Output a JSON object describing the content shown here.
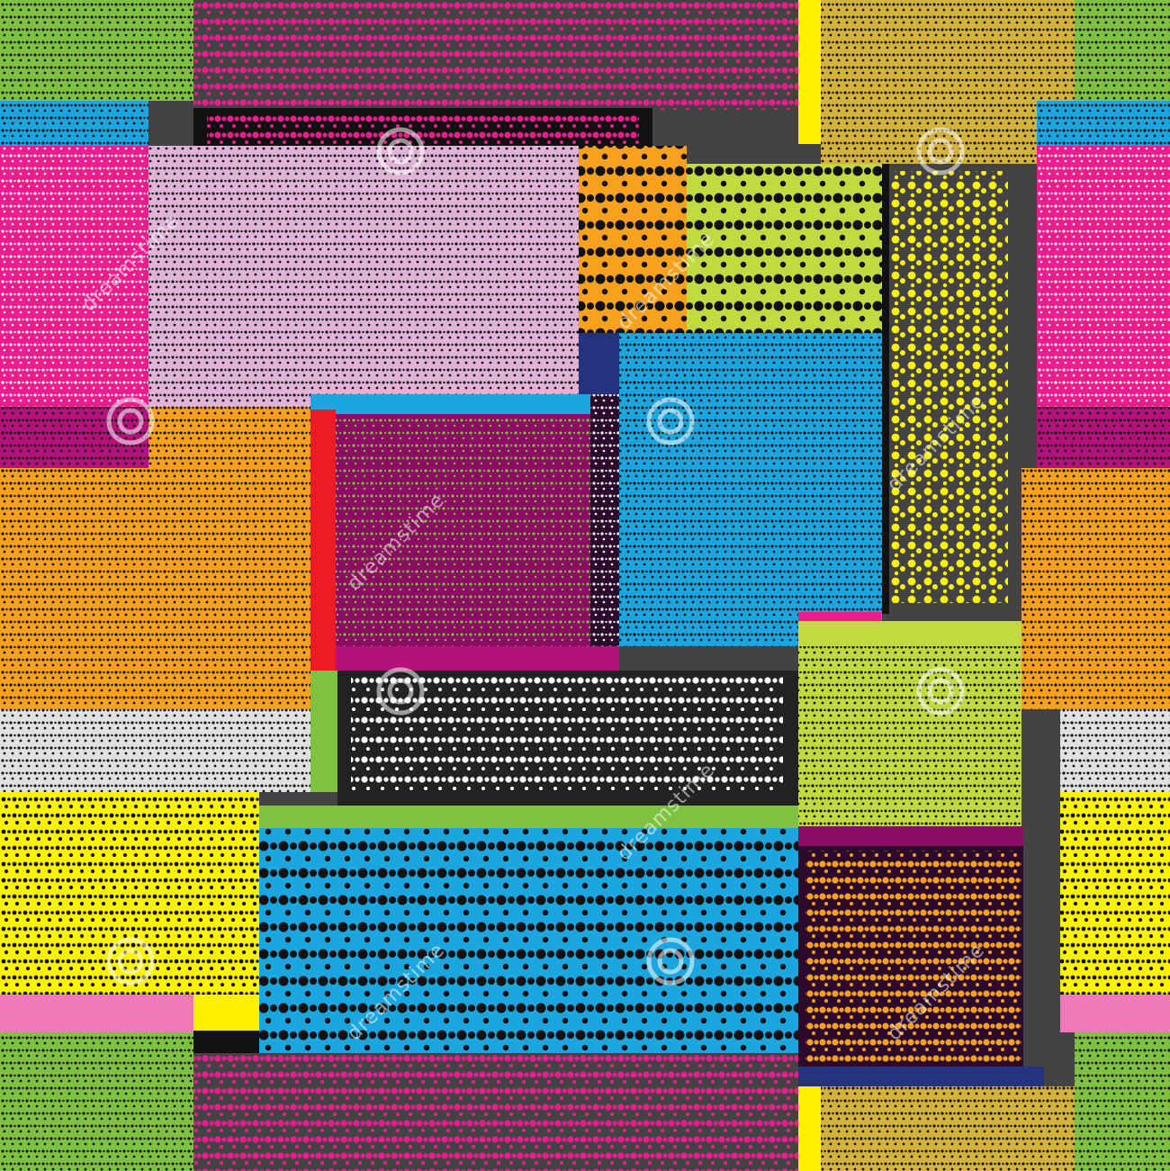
{
  "image": {
    "subject": "seamless patchwork pattern of colored rectangles filled with halftone dot rows",
    "watermark_text": "dreamstime",
    "watermark_icon": "dreamstime-spiral-icon"
  },
  "palette": {
    "green": "#7fc241",
    "charcoal": "#434343",
    "magenta": "#ec1c8c",
    "pink_light": "#e2b3d8",
    "sky_blue": "#1ba6e0",
    "orange": "#f7a11e",
    "lime": "#c2d940",
    "yellow": "#fff200",
    "khaki": "#d3b33c",
    "light_gray": "#e1e1e1",
    "black": "#111111",
    "plum": "#8d0c63",
    "navy": "#25337f",
    "dark_purple": "#2b0a2c",
    "red": "#ed1c24",
    "pink": "#f07ab9",
    "white": "#ffffff"
  }
}
